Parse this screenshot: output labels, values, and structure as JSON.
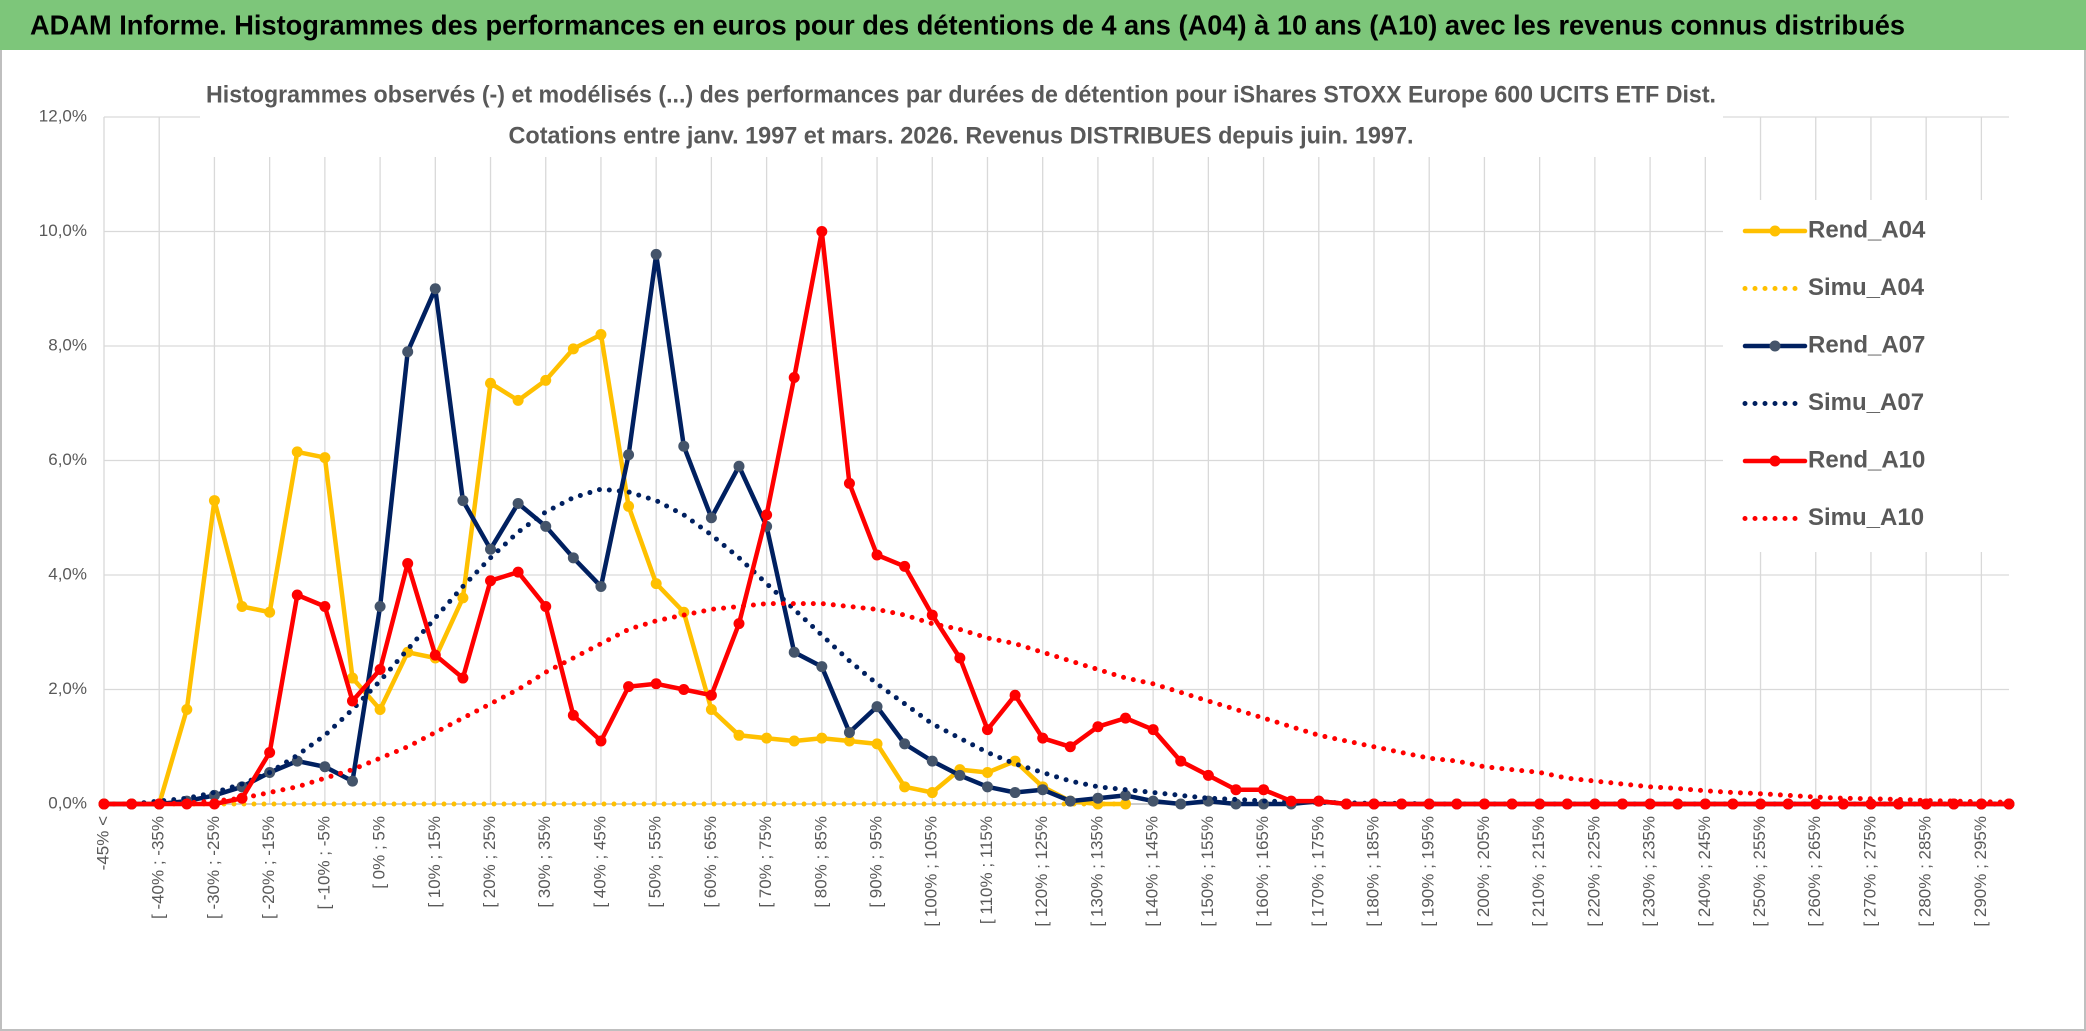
{
  "chart_data": {
    "type": "line",
    "title": "ADAM Informe. Histogrammes des performances en euros pour des détentions de 4 ans (A04) à 10 ans (A10) avec les revenus connus distribués",
    "subtitle": [
      "Histogrammes observés (-) et modélisés (...) des performances par durées de détention pour iShares STOXX Europe 600 UCITS ETF Dist.",
      "Cotations entre janv. 1997 et mars. 2026. Revenus DISTRIBUES depuis juin. 1997."
    ],
    "categories": [
      "-45% <",
      null,
      "[ -40% ; -35%",
      null,
      "[ -30% ; -25%",
      null,
      "[ -20% ; -15%",
      null,
      "[ -10% ; -5%",
      null,
      "[ 0% ; 5%",
      null,
      "[ 10% ; 15%",
      null,
      "[ 20% ; 25%",
      null,
      "[ 30% ; 35%",
      null,
      "[ 40% ; 45%",
      null,
      "[ 50% ; 55%",
      null,
      "[ 60% ; 65%",
      null,
      "[ 70% ; 75%",
      null,
      "[ 80% ; 85%",
      null,
      "[ 90% ; 95%",
      null,
      "[ 100% ; 105%",
      null,
      "[ 110% ; 115%",
      null,
      "[ 120% ; 125%",
      null,
      "[ 130% ; 135%",
      null,
      "[ 140% ; 145%",
      null,
      "[ 150% ; 155%",
      null,
      "[ 160% ; 165%",
      null,
      "[ 170% ; 175%",
      null,
      "[ 180% ; 185%",
      null,
      "[ 190% ; 195%",
      null,
      "[ 200% ; 205%",
      null,
      "[ 210% ; 215%",
      null,
      "[ 220% ; 225%",
      null,
      "[ 230% ; 235%",
      null,
      "[ 240% ; 245%",
      null,
      "[ 250% ; 255%",
      null,
      "[ 260% ; 265%",
      null,
      "[ 270% ; 275%",
      null,
      "[ 280% ; 285%",
      null,
      "[ 290% ; 295%",
      null
    ],
    "series": [
      {
        "name": "Rend_A04",
        "color": "#ffc000",
        "style": "solid",
        "marker_color": "#ffc000",
        "values": [
          0,
          0,
          0,
          1.65,
          5.3,
          3.45,
          3.35,
          6.15,
          6.05,
          2.2,
          1.65,
          2.65,
          2.55,
          3.6,
          7.35,
          7.05,
          7.4,
          7.95,
          8.2,
          5.2,
          3.85,
          3.35,
          1.65,
          1.2,
          1.15,
          1.1,
          1.15,
          1.1,
          1.05,
          0.3,
          0.2,
          0.6,
          0.55,
          0.75,
          0.3,
          0.05,
          0,
          0,
          null,
          null,
          null,
          null,
          null,
          null,
          null,
          null,
          null,
          null,
          null,
          null,
          null,
          null,
          null,
          null,
          null,
          null,
          null,
          null,
          null,
          null,
          null,
          null,
          null,
          null,
          null,
          null,
          null,
          null,
          null,
          null
        ]
      },
      {
        "name": "Simu_A04",
        "color": "#ffc000",
        "style": "dotted",
        "values": [
          0,
          0,
          0,
          0,
          0,
          0,
          0,
          0,
          0,
          0,
          0,
          0,
          0,
          0,
          0,
          0,
          0,
          0,
          0,
          0,
          0,
          0,
          0,
          0,
          0,
          0,
          0,
          0,
          0,
          0,
          0,
          0,
          0,
          0,
          0,
          0,
          0,
          0,
          null,
          null,
          null,
          null,
          null,
          null,
          null,
          null,
          null,
          null,
          null,
          null,
          null,
          null,
          null,
          null,
          null,
          null,
          null,
          null,
          null,
          null,
          null,
          null,
          null,
          null,
          null,
          null,
          null,
          null,
          null,
          null
        ]
      },
      {
        "name": "Rend_A07",
        "color": "#002060",
        "style": "solid",
        "marker_color": "#44546a",
        "values": [
          0,
          0,
          0,
          0.05,
          0.15,
          0.3,
          0.55,
          0.75,
          0.65,
          0.4,
          3.45,
          7.9,
          9.0,
          5.3,
          4.45,
          5.25,
          4.85,
          4.3,
          3.8,
          6.1,
          9.6,
          6.25,
          5.0,
          5.9,
          4.85,
          2.65,
          2.4,
          1.25,
          1.7,
          1.05,
          0.75,
          0.5,
          0.3,
          0.2,
          0.25,
          0.05,
          0.1,
          0.15,
          0.05,
          0,
          0.05,
          0,
          0,
          0,
          0.05,
          0,
          0,
          0,
          0,
          0,
          0,
          0,
          0,
          0,
          0,
          0,
          0,
          0,
          0,
          0,
          0,
          0,
          0,
          0,
          0,
          0,
          0,
          0,
          0,
          0
        ]
      },
      {
        "name": "Simu_A07",
        "color": "#002060",
        "style": "dotted",
        "values": [
          0,
          0,
          0.05,
          0.1,
          0.2,
          0.35,
          0.55,
          0.85,
          1.2,
          1.65,
          2.15,
          2.7,
          3.25,
          3.8,
          4.3,
          4.75,
          5.1,
          5.35,
          5.5,
          5.45,
          5.3,
          5.05,
          4.7,
          4.3,
          3.85,
          3.4,
          2.95,
          2.5,
          2.1,
          1.75,
          1.4,
          1.15,
          0.9,
          0.7,
          0.55,
          0.4,
          0.3,
          0.25,
          0.2,
          0.15,
          0.1,
          0.08,
          0.05,
          0.04,
          0.03,
          0.02,
          0.01,
          0.01,
          0,
          0,
          0,
          0,
          0,
          0,
          0,
          0,
          0,
          0,
          0,
          0,
          0,
          0,
          0,
          0,
          0,
          0,
          0,
          0,
          0,
          0
        ]
      },
      {
        "name": "Rend_A10",
        "color": "#ff0000",
        "style": "solid",
        "marker_color": "#ff0000",
        "values": [
          0,
          0,
          0,
          0,
          0,
          0.1,
          0.9,
          3.65,
          3.45,
          1.8,
          2.35,
          4.2,
          2.6,
          2.2,
          3.9,
          4.05,
          3.45,
          1.55,
          1.1,
          2.05,
          2.1,
          2.0,
          1.9,
          3.15,
          5.05,
          7.45,
          10.0,
          5.6,
          4.35,
          4.15,
          3.3,
          2.55,
          1.3,
          1.9,
          1.15,
          1.0,
          1.35,
          1.5,
          1.3,
          0.75,
          0.5,
          0.25,
          0.25,
          0.05,
          0.05,
          0,
          0,
          0,
          0,
          0,
          0,
          0,
          0,
          0,
          0,
          0,
          0,
          0,
          0,
          0,
          0,
          0,
          0,
          0,
          0,
          0,
          0,
          0,
          0,
          0
        ]
      },
      {
        "name": "Simu_A10",
        "color": "#ff0000",
        "style": "dotted",
        "values": [
          0,
          0,
          0,
          0.02,
          0.05,
          0.1,
          0.2,
          0.3,
          0.45,
          0.6,
          0.8,
          1.0,
          1.25,
          1.5,
          1.75,
          2.0,
          2.3,
          2.55,
          2.8,
          3.05,
          3.2,
          3.3,
          3.4,
          3.45,
          3.5,
          3.5,
          3.5,
          3.45,
          3.4,
          3.3,
          3.15,
          3.05,
          2.9,
          2.8,
          2.65,
          2.5,
          2.35,
          2.2,
          2.1,
          1.95,
          1.8,
          1.65,
          1.5,
          1.35,
          1.2,
          1.1,
          1.0,
          0.9,
          0.8,
          0.75,
          0.65,
          0.6,
          0.55,
          0.45,
          0.4,
          0.35,
          0.3,
          0.27,
          0.23,
          0.2,
          0.18,
          0.15,
          0.12,
          0.1,
          0.09,
          0.08,
          0.06,
          0.05,
          0.04,
          0.03
        ]
      }
    ],
    "ylim": [
      0,
      12
    ],
    "yticks": [
      {
        "value": 0,
        "label": "0,0%"
      },
      {
        "value": 2,
        "label": "2,0%"
      },
      {
        "value": 4,
        "label": "4,0%"
      },
      {
        "value": 6,
        "label": "6,0%"
      },
      {
        "value": 8,
        "label": "8,0%"
      },
      {
        "value": 10,
        "label": "10,0%"
      },
      {
        "value": 12,
        "label": "12,0%"
      }
    ],
    "grid": true,
    "legend": "right"
  }
}
